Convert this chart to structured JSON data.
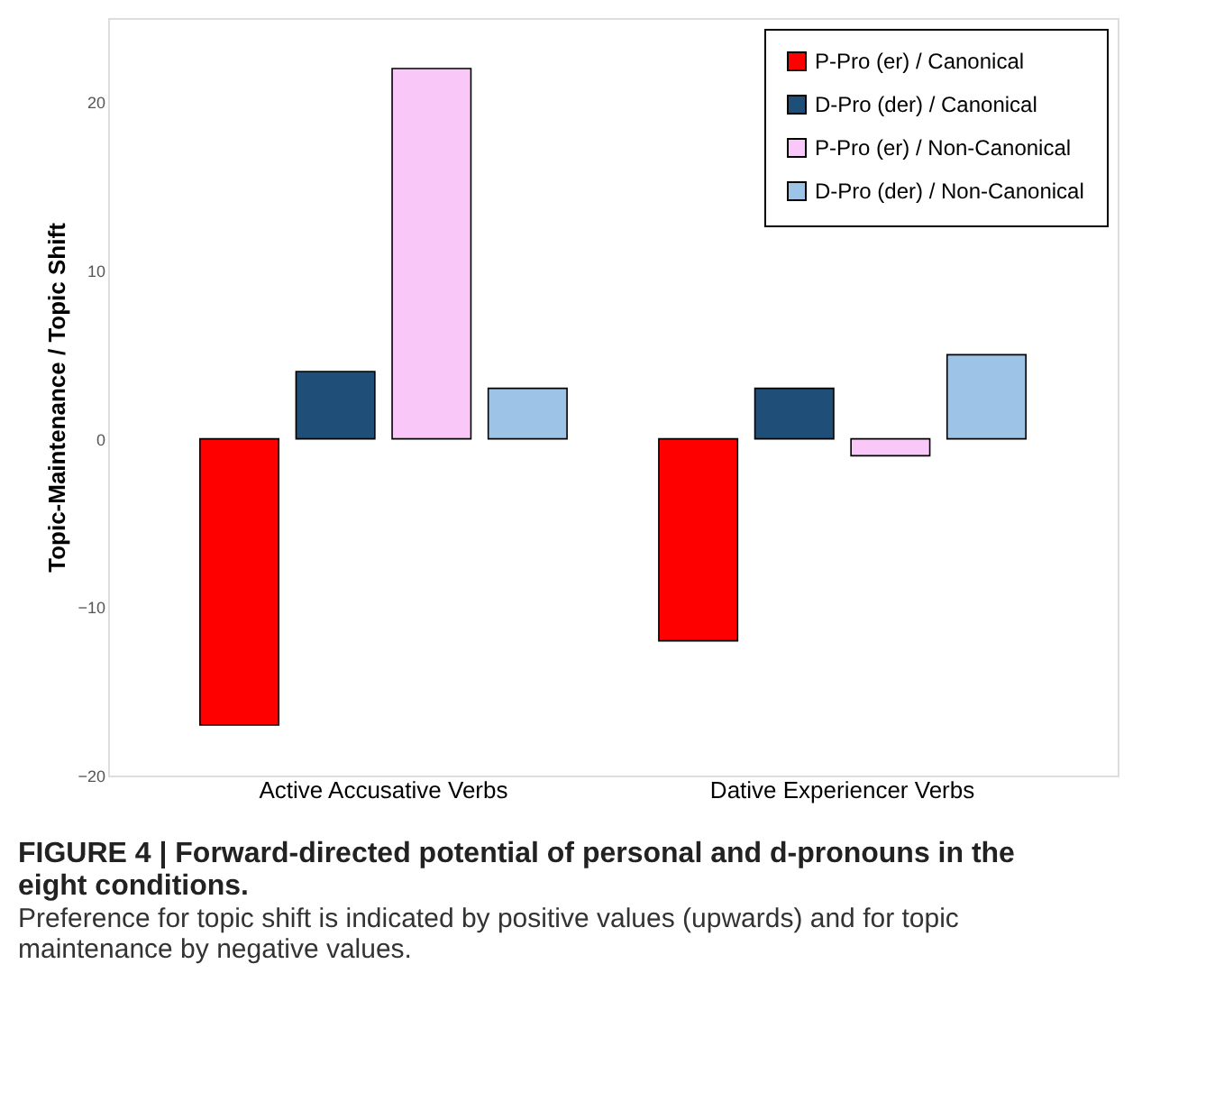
{
  "chart_data": {
    "type": "bar",
    "title": "FIGURE 4 | Forward-directed potential of personal and d-pronouns in the eight conditions.",
    "subtitle": "Preference for topic shift is indicated by positive values (upwards) and for topic maintenance by negative values.",
    "ylabel": "Topic-Maintenance / Topic Shift",
    "categories": [
      "Active Accusative Verbs",
      "Dative Experiencer Verbs"
    ],
    "series": [
      {
        "name": "P-Pro (er) / Canonical",
        "color": "#ff0000",
        "values": [
          -17,
          -12
        ]
      },
      {
        "name": "D-Pro (der) / Canonical",
        "color": "#1f4e79",
        "values": [
          4,
          3
        ]
      },
      {
        "name": "P-Pro (er) / Non-Canonical",
        "color": "#f9c8f9",
        "values": [
          22,
          -1
        ]
      },
      {
        "name": "D-Pro (der) / Non-Canonical",
        "color": "#9dc3e6",
        "values": [
          3,
          5
        ]
      }
    ],
    "ylim": [
      -20,
      25
    ],
    "yticks": [
      -20,
      -10,
      0,
      10,
      20
    ],
    "grid": false,
    "legend": "top right"
  }
}
